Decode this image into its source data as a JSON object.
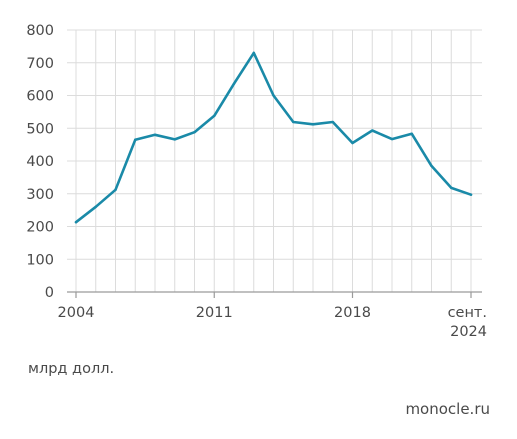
{
  "chart_data": {
    "type": "line",
    "title": "",
    "xlabel": "",
    "ylabel": "",
    "ylim": [
      0,
      800
    ],
    "y_ticks": [
      0,
      100,
      200,
      300,
      400,
      500,
      600,
      700,
      800
    ],
    "x_tick_labels": [
      {
        "index": 0,
        "lines": [
          "2004"
        ]
      },
      {
        "index": 7,
        "lines": [
          "2011"
        ]
      },
      {
        "index": 14,
        "lines": [
          "2018"
        ]
      },
      {
        "index": 20,
        "lines": [
          "сент.",
          "2024"
        ]
      }
    ],
    "grid": true,
    "series": [
      {
        "color": "#1a8aa8",
        "x": [
          "2004",
          "2005",
          "2006",
          "2007",
          "2008",
          "2009",
          "2010",
          "2011",
          "2012",
          "2013",
          "2014",
          "2015",
          "2016",
          "2017",
          "2018",
          "2019",
          "2020",
          "2021",
          "2022",
          "2023",
          "сент. 2024"
        ],
        "values": [
          213,
          260,
          312,
          465,
          480,
          466,
          488,
          538,
          636,
          730,
          600,
          519,
          512,
          519,
          455,
          493,
          467,
          483,
          385,
          318,
          297
        ]
      }
    ]
  },
  "unit_label": "млрд долл.",
  "source_label": "monocle.ru",
  "colors": {
    "line": "#1a8aa8",
    "grid": "#dcdcdc",
    "axis": "#9a9a9a"
  }
}
